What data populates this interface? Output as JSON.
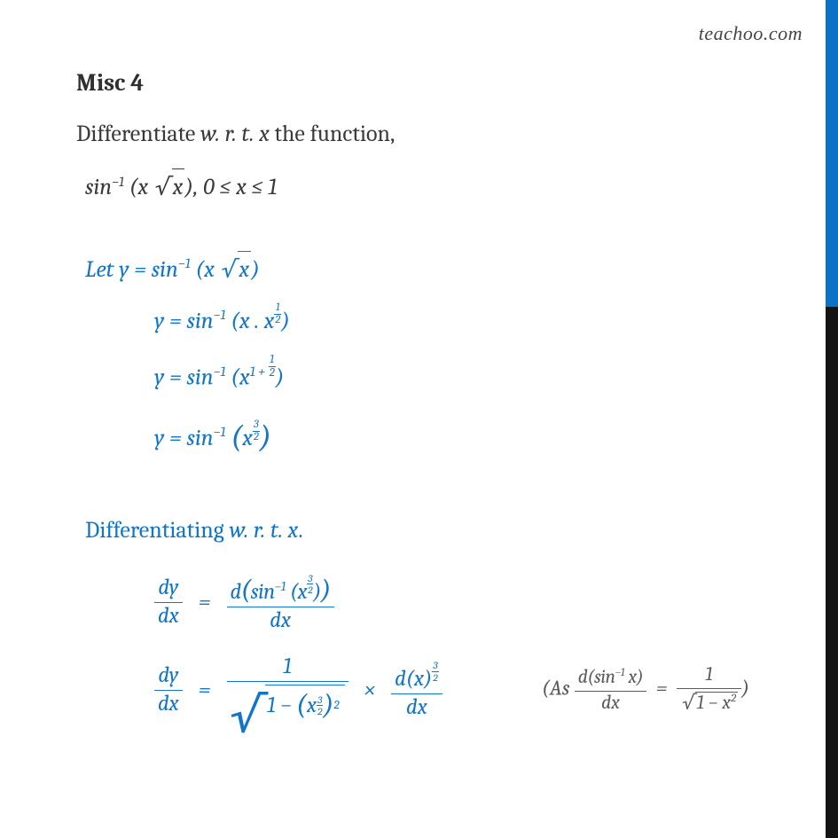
{
  "watermark": "teachoo.com",
  "title": "Misc  4",
  "text": {
    "differentiate": "Differentiate ",
    "wrt": "w. r. t. x",
    "the_function": " the function,",
    "func_label": "sin",
    "neg1": "−1",
    "range": ", 0  ≤  x  ≤  1",
    "let": "Let  ",
    "differentiating": "Differentiating ",
    "dot": ".",
    "as": "As ",
    "eq": "=",
    "times": "×",
    "dy": "dy",
    "dx": "dx",
    "d": "d",
    "x": "x",
    "y": "y",
    "one": "1",
    "minus": "−",
    "oneplushalf": "1 + ",
    "sq": "2"
  },
  "frac": {
    "half_n": "1",
    "half_d": "2",
    "th_n": "3",
    "th_d": "2"
  },
  "colors": {
    "blue": "#1176c8",
    "text": "#3a3a3a",
    "strip_blue": "#0b73c7",
    "strip_black": "#141414",
    "aside": "#5b5b5b",
    "bg": "#ffffff"
  },
  "layout": {
    "strip_blue_h": 346,
    "strip_black_h": 599
  }
}
